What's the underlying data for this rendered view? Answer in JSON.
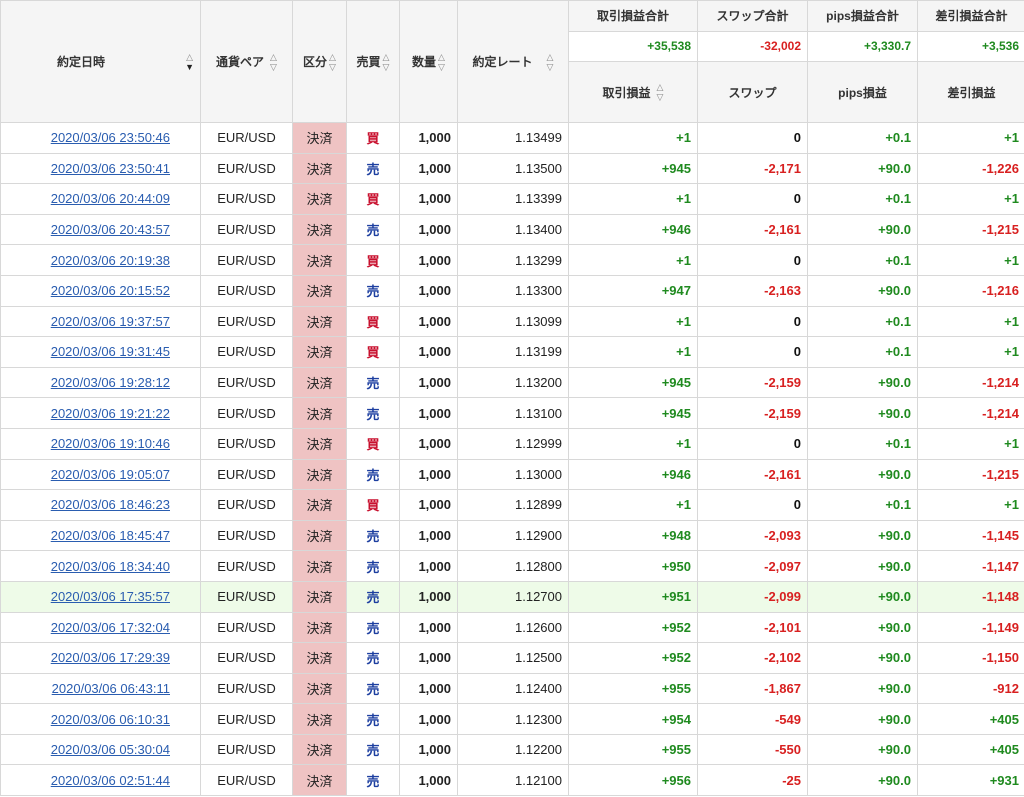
{
  "columns": {
    "datetime": "約定日時",
    "pair": "通貨ペア",
    "kubun": "区分",
    "side": "売買",
    "qty": "数量",
    "rate": "約定レート",
    "pl_total": "取引損益合計",
    "swap_total": "スワップ合計",
    "pips_total": "pips損益合計",
    "net_total": "差引損益合計",
    "pl": "取引損益",
    "swap": "スワップ",
    "pips": "pips損益",
    "net": "差引損益"
  },
  "totals": {
    "pl": "+35,538",
    "swap": "-32,002",
    "pips": "+3,330.7",
    "net": "+3,536"
  },
  "colors": {
    "buy": "#c8102e",
    "sell": "#1d3fa0",
    "positive": "#1f8a1f",
    "negative": "#d82020",
    "kubun_bg": "#efc3c3",
    "link": "#2a5db0"
  },
  "rows": [
    {
      "dt": "2020/03/06 23:50:46",
      "pair": "EUR/USD",
      "kubun": "決済",
      "side": "買",
      "qty": "1,000",
      "rate": "1.13499",
      "pl": "+1",
      "swap": "0",
      "pips": "+0.1",
      "net": "+1"
    },
    {
      "dt": "2020/03/06 23:50:41",
      "pair": "EUR/USD",
      "kubun": "決済",
      "side": "売",
      "qty": "1,000",
      "rate": "1.13500",
      "pl": "+945",
      "swap": "-2,171",
      "pips": "+90.0",
      "net": "-1,226"
    },
    {
      "dt": "2020/03/06 20:44:09",
      "pair": "EUR/USD",
      "kubun": "決済",
      "side": "買",
      "qty": "1,000",
      "rate": "1.13399",
      "pl": "+1",
      "swap": "0",
      "pips": "+0.1",
      "net": "+1"
    },
    {
      "dt": "2020/03/06 20:43:57",
      "pair": "EUR/USD",
      "kubun": "決済",
      "side": "売",
      "qty": "1,000",
      "rate": "1.13400",
      "pl": "+946",
      "swap": "-2,161",
      "pips": "+90.0",
      "net": "-1,215"
    },
    {
      "dt": "2020/03/06 20:19:38",
      "pair": "EUR/USD",
      "kubun": "決済",
      "side": "買",
      "qty": "1,000",
      "rate": "1.13299",
      "pl": "+1",
      "swap": "0",
      "pips": "+0.1",
      "net": "+1"
    },
    {
      "dt": "2020/03/06 20:15:52",
      "pair": "EUR/USD",
      "kubun": "決済",
      "side": "売",
      "qty": "1,000",
      "rate": "1.13300",
      "pl": "+947",
      "swap": "-2,163",
      "pips": "+90.0",
      "net": "-1,216"
    },
    {
      "dt": "2020/03/06 19:37:57",
      "pair": "EUR/USD",
      "kubun": "決済",
      "side": "買",
      "qty": "1,000",
      "rate": "1.13099",
      "pl": "+1",
      "swap": "0",
      "pips": "+0.1",
      "net": "+1"
    },
    {
      "dt": "2020/03/06 19:31:45",
      "pair": "EUR/USD",
      "kubun": "決済",
      "side": "買",
      "qty": "1,000",
      "rate": "1.13199",
      "pl": "+1",
      "swap": "0",
      "pips": "+0.1",
      "net": "+1"
    },
    {
      "dt": "2020/03/06 19:28:12",
      "pair": "EUR/USD",
      "kubun": "決済",
      "side": "売",
      "qty": "1,000",
      "rate": "1.13200",
      "pl": "+945",
      "swap": "-2,159",
      "pips": "+90.0",
      "net": "-1,214"
    },
    {
      "dt": "2020/03/06 19:21:22",
      "pair": "EUR/USD",
      "kubun": "決済",
      "side": "売",
      "qty": "1,000",
      "rate": "1.13100",
      "pl": "+945",
      "swap": "-2,159",
      "pips": "+90.0",
      "net": "-1,214"
    },
    {
      "dt": "2020/03/06 19:10:46",
      "pair": "EUR/USD",
      "kubun": "決済",
      "side": "買",
      "qty": "1,000",
      "rate": "1.12999",
      "pl": "+1",
      "swap": "0",
      "pips": "+0.1",
      "net": "+1"
    },
    {
      "dt": "2020/03/06 19:05:07",
      "pair": "EUR/USD",
      "kubun": "決済",
      "side": "売",
      "qty": "1,000",
      "rate": "1.13000",
      "pl": "+946",
      "swap": "-2,161",
      "pips": "+90.0",
      "net": "-1,215"
    },
    {
      "dt": "2020/03/06 18:46:23",
      "pair": "EUR/USD",
      "kubun": "決済",
      "side": "買",
      "qty": "1,000",
      "rate": "1.12899",
      "pl": "+1",
      "swap": "0",
      "pips": "+0.1",
      "net": "+1"
    },
    {
      "dt": "2020/03/06 18:45:47",
      "pair": "EUR/USD",
      "kubun": "決済",
      "side": "売",
      "qty": "1,000",
      "rate": "1.12900",
      "pl": "+948",
      "swap": "-2,093",
      "pips": "+90.0",
      "net": "-1,145"
    },
    {
      "dt": "2020/03/06 18:34:40",
      "pair": "EUR/USD",
      "kubun": "決済",
      "side": "売",
      "qty": "1,000",
      "rate": "1.12800",
      "pl": "+950",
      "swap": "-2,097",
      "pips": "+90.0",
      "net": "-1,147"
    },
    {
      "dt": "2020/03/06 17:35:57",
      "pair": "EUR/USD",
      "kubun": "決済",
      "side": "売",
      "qty": "1,000",
      "rate": "1.12700",
      "pl": "+951",
      "swap": "-2,099",
      "pips": "+90.0",
      "net": "-1,148",
      "highlight": true
    },
    {
      "dt": "2020/03/06 17:32:04",
      "pair": "EUR/USD",
      "kubun": "決済",
      "side": "売",
      "qty": "1,000",
      "rate": "1.12600",
      "pl": "+952",
      "swap": "-2,101",
      "pips": "+90.0",
      "net": "-1,149"
    },
    {
      "dt": "2020/03/06 17:29:39",
      "pair": "EUR/USD",
      "kubun": "決済",
      "side": "売",
      "qty": "1,000",
      "rate": "1.12500",
      "pl": "+952",
      "swap": "-2,102",
      "pips": "+90.0",
      "net": "-1,150"
    },
    {
      "dt": "2020/03/06 06:43:11",
      "pair": "EUR/USD",
      "kubun": "決済",
      "side": "売",
      "qty": "1,000",
      "rate": "1.12400",
      "pl": "+955",
      "swap": "-1,867",
      "pips": "+90.0",
      "net": "-912"
    },
    {
      "dt": "2020/03/06 06:10:31",
      "pair": "EUR/USD",
      "kubun": "決済",
      "side": "売",
      "qty": "1,000",
      "rate": "1.12300",
      "pl": "+954",
      "swap": "-549",
      "pips": "+90.0",
      "net": "+405"
    },
    {
      "dt": "2020/03/06 05:30:04",
      "pair": "EUR/USD",
      "kubun": "決済",
      "side": "売",
      "qty": "1,000",
      "rate": "1.12200",
      "pl": "+955",
      "swap": "-550",
      "pips": "+90.0",
      "net": "+405"
    },
    {
      "dt": "2020/03/06 02:51:44",
      "pair": "EUR/USD",
      "kubun": "決済",
      "side": "売",
      "qty": "1,000",
      "rate": "1.12100",
      "pl": "+956",
      "swap": "-25",
      "pips": "+90.0",
      "net": "+931"
    }
  ]
}
